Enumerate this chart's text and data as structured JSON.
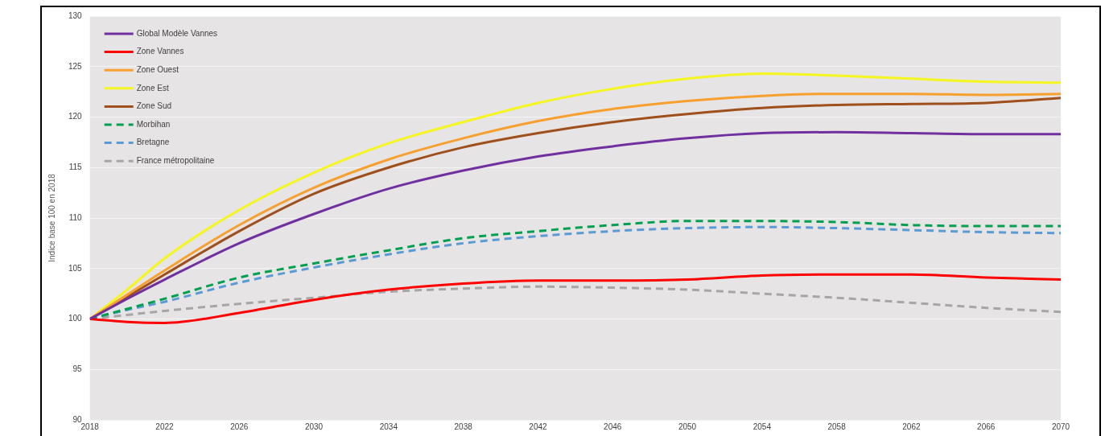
{
  "chart_data": {
    "type": "line",
    "ylabel": "Indice base 100 en 2018",
    "x": [
      2018,
      2020,
      2022,
      2026,
      2030,
      2034,
      2038,
      2042,
      2046,
      2050,
      2054,
      2058,
      2062,
      2066,
      2070
    ],
    "series": [
      {
        "name": "Global Modèle Vannes",
        "color": "#7030a0",
        "line_style": "solid",
        "values": [
          100,
          102.0,
          103.9,
          107.5,
          110.4,
          112.9,
          114.7,
          116.1,
          117.1,
          117.9,
          118.4,
          118.5,
          118.4,
          118.3,
          118.3
        ]
      },
      {
        "name": "Zone Vannes",
        "color": "#ff0000",
        "line_style": "solid",
        "values": [
          100,
          99.7,
          99.6,
          100.6,
          101.9,
          102.9,
          103.5,
          103.8,
          103.8,
          103.9,
          104.3,
          104.4,
          104.4,
          104.1,
          103.9
        ]
      },
      {
        "name": "Zone Ouest",
        "color": "#f7a030",
        "line_style": "solid",
        "values": [
          100,
          102.4,
          104.8,
          109.3,
          113.0,
          115.8,
          117.9,
          119.6,
          120.8,
          121.6,
          122.1,
          122.3,
          122.3,
          122.2,
          122.3
        ]
      },
      {
        "name": "Zone Est",
        "color": "#f5f520",
        "line_style": "solid",
        "values": [
          100,
          102.9,
          106.0,
          110.8,
          114.5,
          117.4,
          119.5,
          121.4,
          122.8,
          123.8,
          124.3,
          124.1,
          123.8,
          123.5,
          123.4
        ]
      },
      {
        "name": "Zone Sud",
        "color": "#9e4f1c",
        "line_style": "solid",
        "values": [
          100,
          102.2,
          104.4,
          108.7,
          112.4,
          115.0,
          117.0,
          118.4,
          119.5,
          120.3,
          120.9,
          121.2,
          121.3,
          121.4,
          121.9
        ]
      },
      {
        "name": "Morbihan",
        "color": "#00a050",
        "line_style": "dashed",
        "values": [
          100,
          101.0,
          102.0,
          104.1,
          105.5,
          106.8,
          108.0,
          108.7,
          109.3,
          109.7,
          109.7,
          109.6,
          109.3,
          109.2,
          109.2
        ]
      },
      {
        "name": "Bretagne",
        "color": "#5b9bd5",
        "line_style": "dashed",
        "values": [
          100,
          100.9,
          101.7,
          103.6,
          105.1,
          106.4,
          107.5,
          108.2,
          108.7,
          109.0,
          109.1,
          109.0,
          108.8,
          108.6,
          108.5
        ]
      },
      {
        "name": "France métropolitaine",
        "color": "#a6a6a6",
        "line_style": "dashed",
        "values": [
          100,
          100.4,
          100.8,
          101.5,
          102.1,
          102.7,
          103.0,
          103.2,
          103.1,
          102.9,
          102.5,
          102.1,
          101.6,
          101.1,
          100.7
        ]
      }
    ],
    "xlim": [
      2018,
      2070
    ],
    "xticks": [
      2018,
      2022,
      2026,
      2030,
      2034,
      2038,
      2042,
      2046,
      2050,
      2054,
      2058,
      2062,
      2066,
      2070
    ],
    "ylim": [
      90,
      130
    ],
    "yticks": [
      90,
      95,
      100,
      105,
      110,
      115,
      120,
      125,
      130
    ],
    "grid": "y",
    "legend": "top left",
    "marker": "none"
  }
}
